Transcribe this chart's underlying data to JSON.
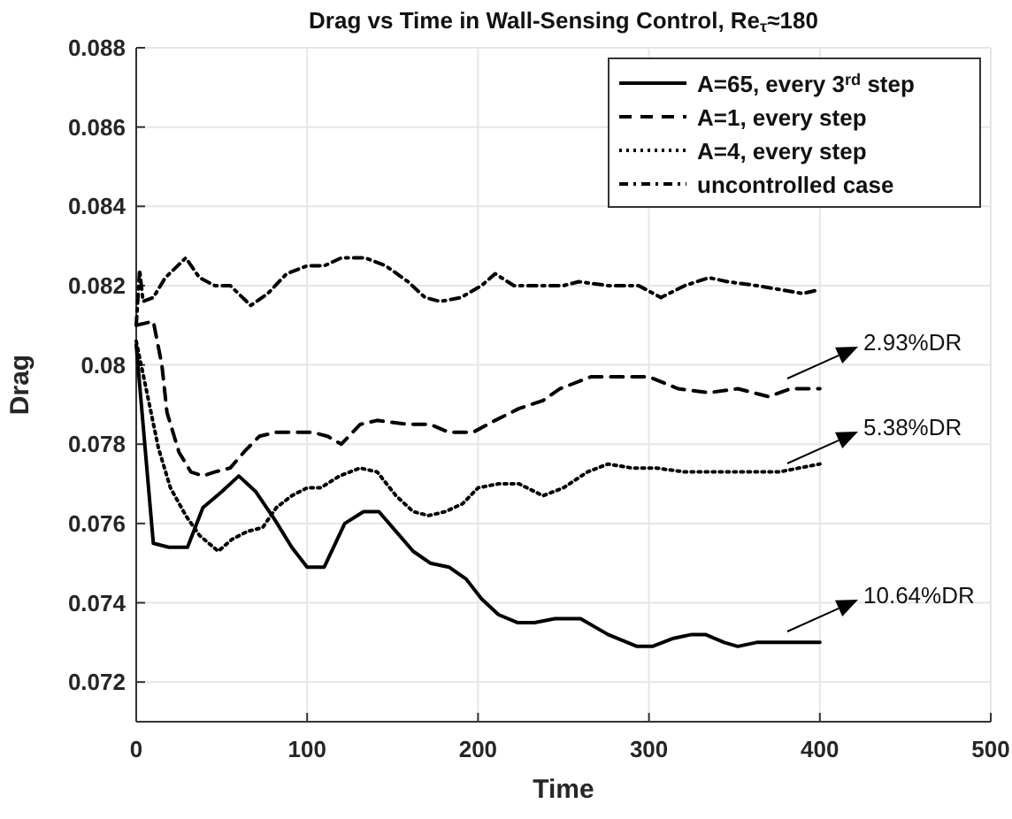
{
  "chart_data": {
    "type": "line",
    "title": "Drag vs Time in Wall-Sensing Control, Re$_{τ}$≈180",
    "xlabel": "Time",
    "ylabel": "Drag",
    "xlim": [
      0,
      500
    ],
    "xticks": [
      0,
      100,
      200,
      300,
      400,
      500
    ],
    "ylim": [
      0.071,
      0.088
    ],
    "yticks": [
      0.072,
      0.074,
      0.076,
      0.078,
      0.08,
      0.082,
      0.084,
      0.086,
      0.088
    ],
    "grid": true,
    "legend": "top right",
    "marker": "none",
    "series": [
      {
        "name": "A=65, every 3$^{rd}$ step",
        "color": "#000000",
        "line_style": "solid",
        "x": [
          0,
          10,
          19,
          30,
          39,
          50,
          60,
          70,
          81,
          91,
          100,
          110,
          122,
          133,
          142,
          152,
          162,
          172,
          183,
          193,
          202,
          212,
          223,
          233,
          245,
          260,
          276,
          293,
          302,
          314,
          325,
          333,
          344,
          352,
          363,
          373,
          383,
          400
        ],
        "values": [
          0.0805,
          0.0755,
          0.0754,
          0.0754,
          0.0764,
          0.0768,
          0.0772,
          0.0768,
          0.0761,
          0.0754,
          0.0749,
          0.0749,
          0.076,
          0.0763,
          0.0763,
          0.0758,
          0.0753,
          0.075,
          0.0749,
          0.0746,
          0.0741,
          0.0737,
          0.0735,
          0.0735,
          0.0736,
          0.0736,
          0.0732,
          0.0729,
          0.0729,
          0.0731,
          0.0732,
          0.0732,
          0.073,
          0.0729,
          0.073,
          0.073,
          0.073,
          0.073
        ]
      },
      {
        "name": "A=1, every step",
        "color": "#000000",
        "line_style": "dashed",
        "x": [
          0,
          10,
          15,
          18,
          25,
          32,
          39,
          46,
          55,
          63,
          72,
          82,
          93,
          103,
          112,
          120,
          131,
          141,
          159,
          172,
          183,
          197,
          210,
          224,
          238,
          248,
          266,
          283,
          300,
          317,
          335,
          352,
          370,
          383,
          400
        ],
        "values": [
          0.081,
          0.0811,
          0.08,
          0.0788,
          0.0778,
          0.0773,
          0.0772,
          0.0773,
          0.0774,
          0.0778,
          0.0782,
          0.0783,
          0.0783,
          0.0783,
          0.0782,
          0.078,
          0.0785,
          0.0786,
          0.0785,
          0.0785,
          0.0783,
          0.0783,
          0.0786,
          0.0789,
          0.0791,
          0.0794,
          0.0797,
          0.0797,
          0.0797,
          0.0794,
          0.0793,
          0.0794,
          0.0792,
          0.0794,
          0.0794
        ]
      },
      {
        "name": "A=4, every step",
        "color": "#000000",
        "line_style": "dotted",
        "x": [
          0,
          13,
          20,
          29,
          37,
          48,
          56,
          65,
          74,
          82,
          91,
          100,
          108,
          119,
          131,
          141,
          152,
          162,
          171,
          181,
          191,
          200,
          212,
          224,
          238,
          250,
          264,
          276,
          290,
          304,
          321,
          339,
          359,
          376,
          400
        ],
        "values": [
          0.0806,
          0.0779,
          0.0769,
          0.0762,
          0.0757,
          0.0753,
          0.0756,
          0.0758,
          0.0759,
          0.0764,
          0.0767,
          0.0769,
          0.0769,
          0.0772,
          0.0774,
          0.0773,
          0.0767,
          0.0763,
          0.0762,
          0.0763,
          0.0765,
          0.0769,
          0.077,
          0.077,
          0.0767,
          0.0769,
          0.0773,
          0.0775,
          0.0774,
          0.0774,
          0.0773,
          0.0773,
          0.0773,
          0.0773,
          0.0775
        ]
      },
      {
        "name": "uncontrolled case",
        "color": "#000000",
        "line_style": "dashdot",
        "x": [
          0,
          2,
          4,
          10,
          17,
          29,
          37,
          46,
          55,
          67,
          77,
          88,
          100,
          110,
          120,
          134,
          146,
          159,
          169,
          178,
          190,
          202,
          210,
          221,
          235,
          250,
          259,
          276,
          294,
          307,
          321,
          335,
          346,
          363,
          377,
          390,
          400
        ],
        "values": [
          0.081,
          0.0824,
          0.0816,
          0.0817,
          0.0822,
          0.0827,
          0.0822,
          0.082,
          0.082,
          0.0815,
          0.0818,
          0.0823,
          0.0825,
          0.0825,
          0.0827,
          0.0827,
          0.0825,
          0.0821,
          0.0817,
          0.0816,
          0.0817,
          0.082,
          0.0823,
          0.082,
          0.082,
          0.082,
          0.0821,
          0.082,
          0.082,
          0.0817,
          0.082,
          0.0822,
          0.0821,
          0.082,
          0.0819,
          0.0818,
          0.0819
        ]
      }
    ],
    "annotations": [
      "2.93%DR",
      "5.38%DR",
      "10.64%DR"
    ]
  }
}
